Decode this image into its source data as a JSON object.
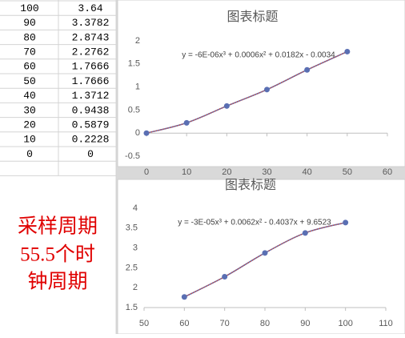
{
  "table": {
    "rows": [
      [
        "100",
        "3.64"
      ],
      [
        "90",
        "3.3782"
      ],
      [
        "80",
        "2.8743"
      ],
      [
        "70",
        "2.2762"
      ],
      [
        "60",
        "1.7666"
      ],
      [
        "50",
        "1.7666"
      ],
      [
        "40",
        "1.3712"
      ],
      [
        "30",
        "0.9438"
      ],
      [
        "20",
        "0.5879"
      ],
      [
        "10",
        "0.2228"
      ],
      [
        "0",
        "0"
      ]
    ]
  },
  "note": {
    "lines": [
      "采样周期",
      "55.5个时",
      "钟周期"
    ]
  },
  "chart_data": [
    {
      "type": "line",
      "title": "图表标题",
      "x": [
        0,
        10,
        20,
        30,
        40,
        50
      ],
      "values": [
        0,
        0.2228,
        0.5879,
        0.9438,
        1.3712,
        1.7666
      ],
      "color": "#5a6fb3",
      "trendline": {
        "label": "y = -6E-06x³ + 0.0006x² + 0.0182x - 0.0034",
        "color": "#c0504d"
      },
      "xlim": [
        0,
        60
      ],
      "xticks": [
        0,
        10,
        20,
        30,
        40,
        50,
        60
      ],
      "ylim": [
        -0.5,
        2
      ],
      "yticks": [
        -0.5,
        0,
        0.5,
        1,
        1.5,
        2
      ],
      "grid": false
    },
    {
      "type": "line",
      "title": "图表标题",
      "x": [
        60,
        70,
        80,
        90,
        100
      ],
      "values": [
        1.7666,
        2.2762,
        2.8743,
        3.3782,
        3.64
      ],
      "color": "#5a6fb3",
      "trendline": {
        "label": "y = -3E-05x³ + 0.0062x² - 0.4037x + 9.6523",
        "color": "#c0504d"
      },
      "xlim": [
        50,
        110
      ],
      "xticks": [
        50,
        60,
        70,
        80,
        90,
        100,
        110
      ],
      "ylim": [
        1.5,
        4
      ],
      "yticks": [
        1.5,
        2,
        2.5,
        3,
        3.5,
        4
      ],
      "grid": false
    }
  ]
}
